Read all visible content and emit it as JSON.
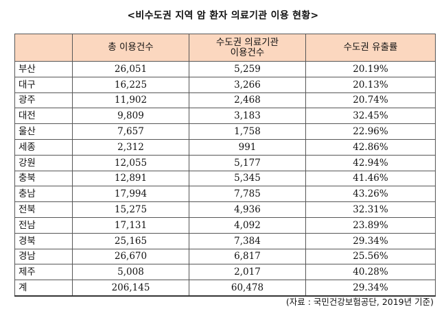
{
  "title": "<비수도권 지역 암 환자 의료기관 이용 현황>",
  "table": {
    "headers": [
      "",
      "총 이용건수",
      "수도권 의료기관\n이용건수",
      "수도권 유출률"
    ],
    "rows": [
      [
        "부산",
        "26,051",
        "5,259",
        "20.19%"
      ],
      [
        "대구",
        "16,225",
        "3,266",
        "20.13%"
      ],
      [
        "광주",
        "11,902",
        "2,468",
        "20.74%"
      ],
      [
        "대전",
        "9,809",
        "3,183",
        "32.45%"
      ],
      [
        "울산",
        "7,657",
        "1,758",
        "22.96%"
      ],
      [
        "세종",
        "2,312",
        "991",
        "42.86%"
      ],
      [
        "강원",
        "12,055",
        "5,177",
        "42.94%"
      ],
      [
        "충북",
        "12,891",
        "5,345",
        "41.46%"
      ],
      [
        "충남",
        "17,994",
        "7,785",
        "43.26%"
      ],
      [
        "전북",
        "15,275",
        "4,936",
        "32.31%"
      ],
      [
        "전남",
        "17,131",
        "4,092",
        "23.89%"
      ],
      [
        "경북",
        "25,165",
        "7,384",
        "29.34%"
      ],
      [
        "경남",
        "26,670",
        "6,817",
        "25.56%"
      ],
      [
        "제주",
        "5,008",
        "2,017",
        "40.28%"
      ],
      [
        "계",
        "206,145",
        "60,478",
        "29.34%"
      ]
    ]
  },
  "source": "(자료 : 국민건강보험공단, 2019년 기준)"
}
